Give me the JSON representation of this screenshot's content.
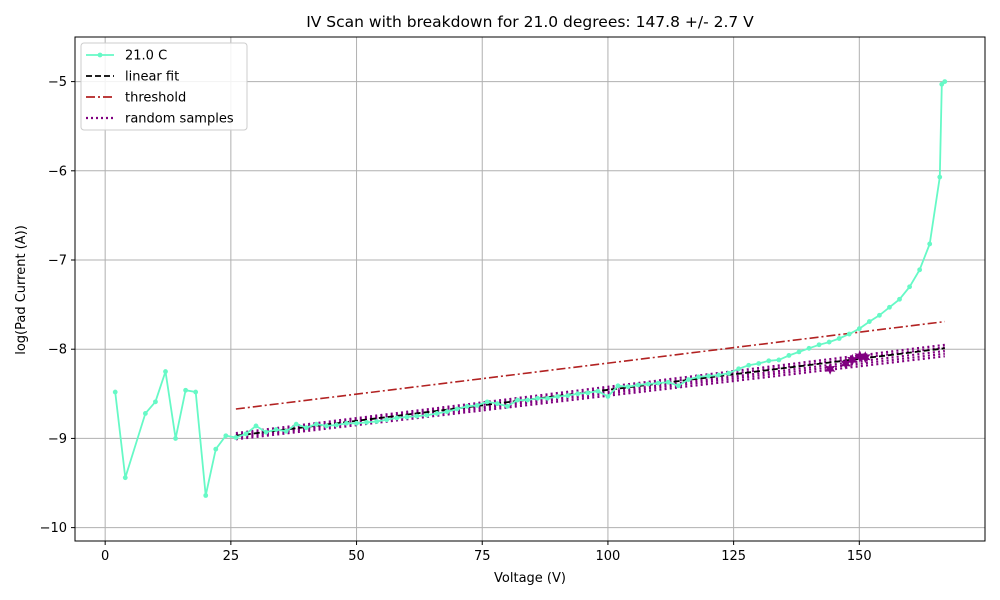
{
  "chart_data": {
    "type": "line",
    "title": "IV Scan with breakdown for 21.0 degrees: 147.8 +/- 2.7 V",
    "xlabel": "Voltage (V)",
    "ylabel": "log(Pad Current (A))",
    "xlim": [
      -6,
      175
    ],
    "ylim": [
      -10.15,
      -4.5
    ],
    "xticks": [
      0,
      25,
      50,
      75,
      100,
      125,
      150
    ],
    "yticks": [
      -10,
      -9,
      -8,
      -7,
      -6,
      -5
    ],
    "xtick_labels": [
      "0",
      "25",
      "50",
      "75",
      "100",
      "125",
      "150"
    ],
    "ytick_labels": [
      "−10",
      "−9",
      "−8",
      "−7",
      "−6",
      "−5"
    ],
    "grid": true,
    "legend_position": "top-left",
    "colors": {
      "data": "#66f9c6",
      "fit": "#000000",
      "threshold": "#b22222",
      "samples": "#800080",
      "grid": "#b0b0b0"
    },
    "series": [
      {
        "name": "21.0 C",
        "style": "line-marker",
        "x": [
          2,
          4,
          8,
          10,
          12,
          14,
          16,
          18,
          20,
          22,
          24,
          26,
          28,
          30,
          32,
          34,
          36,
          38,
          40,
          42,
          44,
          46,
          48,
          50,
          52,
          54,
          56,
          58,
          60,
          62,
          64,
          66,
          68,
          70,
          72,
          74,
          76,
          78,
          80,
          82,
          84,
          86,
          88,
          90,
          92,
          94,
          96,
          98,
          100,
          102,
          104,
          106,
          108,
          110,
          112,
          114,
          116,
          118,
          120,
          122,
          124,
          126,
          128,
          130,
          132,
          134,
          136,
          138,
          140,
          142,
          144,
          146,
          148,
          150,
          152,
          154,
          156,
          158,
          160,
          162,
          164,
          166,
          166.4,
          167
        ],
        "y": [
          -8.48,
          -9.44,
          -8.72,
          -8.59,
          -8.25,
          -9.0,
          -8.46,
          -8.48,
          -9.64,
          -9.12,
          -8.97,
          -8.99,
          -8.95,
          -8.86,
          -8.93,
          -8.9,
          -8.92,
          -8.84,
          -8.88,
          -8.84,
          -8.86,
          -8.85,
          -8.83,
          -8.83,
          -8.82,
          -8.81,
          -8.79,
          -8.77,
          -8.76,
          -8.75,
          -8.74,
          -8.72,
          -8.7,
          -8.67,
          -8.64,
          -8.63,
          -8.59,
          -8.61,
          -8.64,
          -8.57,
          -8.57,
          -8.55,
          -8.55,
          -8.53,
          -8.52,
          -8.5,
          -8.49,
          -8.47,
          -8.53,
          -8.41,
          -8.42,
          -8.4,
          -8.39,
          -8.38,
          -8.37,
          -8.41,
          -8.34,
          -8.31,
          -8.3,
          -8.29,
          -8.27,
          -8.22,
          -8.18,
          -8.16,
          -8.13,
          -8.12,
          -8.07,
          -8.03,
          -7.99,
          -7.95,
          -7.92,
          -7.88,
          -7.83,
          -7.77,
          -7.69,
          -7.62,
          -7.53,
          -7.44,
          -7.3,
          -7.11,
          -6.82,
          -6.07,
          -5.03,
          -5.0
        ]
      },
      {
        "name": "linear fit",
        "style": "dashed",
        "x": [
          26,
          167
        ],
        "y": [
          -8.97,
          -7.99
        ]
      },
      {
        "name": "threshold",
        "style": "dashdot",
        "x": [
          26,
          167
        ],
        "y": [
          -8.67,
          -7.69
        ]
      },
      {
        "name": "random samples",
        "style": "dotted",
        "lines": [
          {
            "x": [
              26,
              167
            ],
            "y": [
              -8.94,
              -7.95
            ]
          },
          {
            "x": [
              26,
              167
            ],
            "y": [
              -8.96,
              -7.98
            ]
          },
          {
            "x": [
              26,
              167
            ],
            "y": [
              -8.98,
              -8.02
            ]
          },
          {
            "x": [
              26,
              167
            ],
            "y": [
              -8.99,
              -8.05
            ]
          },
          {
            "x": [
              26,
              167
            ],
            "y": [
              -9.01,
              -8.08
            ]
          }
        ],
        "breakdown_markers": [
          {
            "x": 144.2,
            "y": -8.22
          },
          {
            "x": 147.3,
            "y": -8.16
          },
          {
            "x": 148.6,
            "y": -8.12
          },
          {
            "x": 150.1,
            "y": -8.08
          },
          {
            "x": 151.2,
            "y": -8.09
          }
        ]
      }
    ]
  }
}
